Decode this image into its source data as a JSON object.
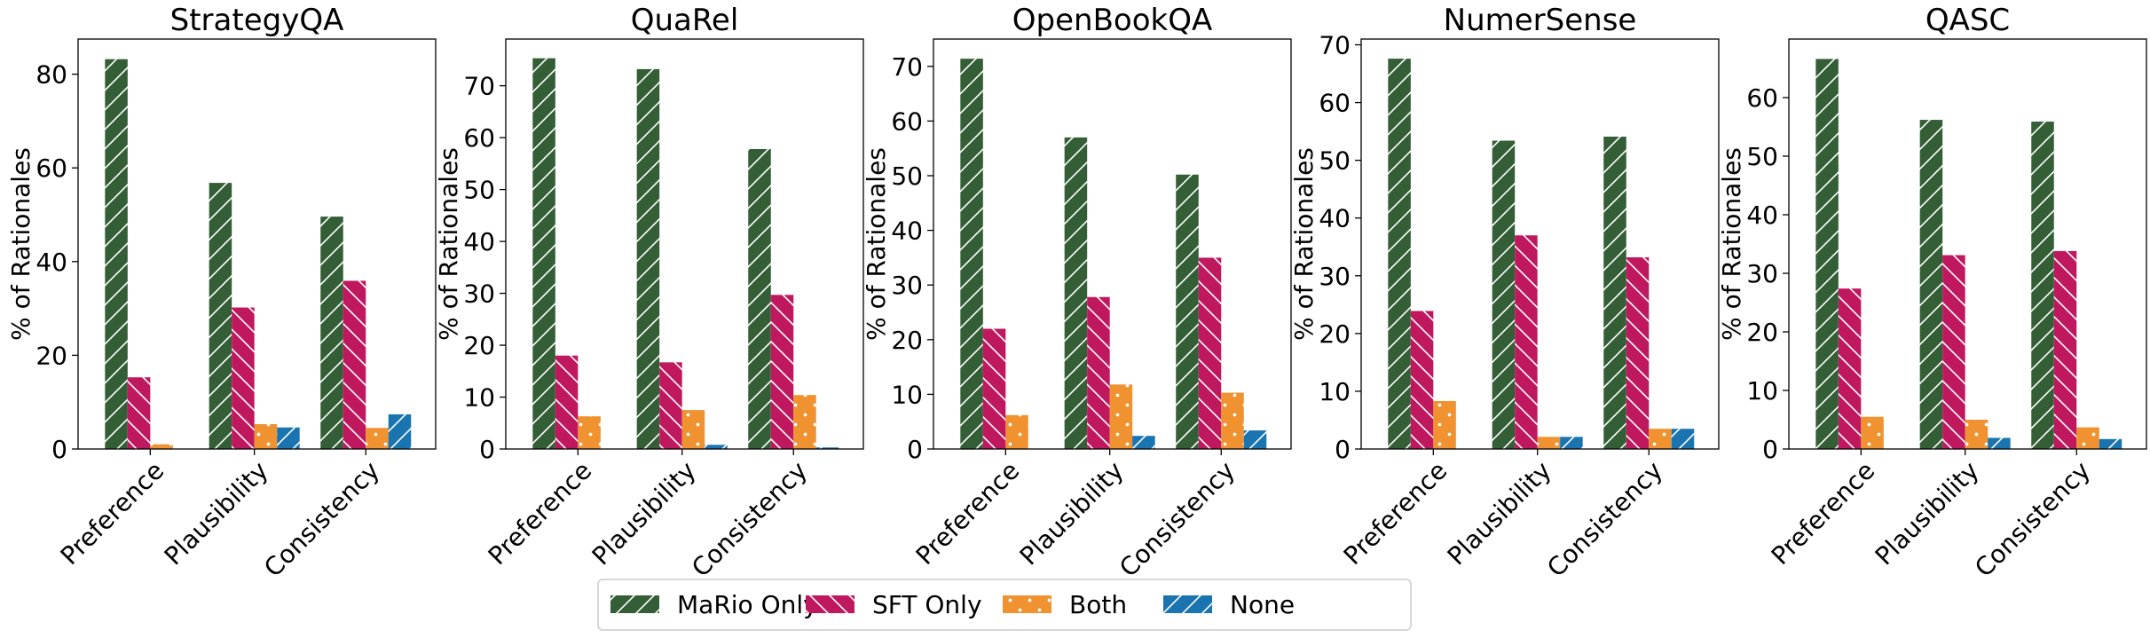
{
  "series_names": [
    "MaRio Only",
    "SFT Only",
    "Both",
    "None"
  ],
  "series_colors": [
    "#335e36",
    "#c0185f",
    "#f0922f",
    "#1a74b0"
  ],
  "series_hatches": [
    "slash",
    "backslash",
    "dots",
    "slash"
  ],
  "legend": {
    "placement": "bottom-center"
  },
  "chart_data": [
    {
      "type": "bar",
      "title": "StrategyQA",
      "categories": [
        "Preference",
        "Plausibility",
        "Consistency"
      ],
      "ylabel": "% of Rationales",
      "ylim": [
        0,
        87.5
      ],
      "yticks": [
        0,
        20,
        40,
        60,
        80
      ],
      "series": [
        {
          "name": "MaRio Only",
          "values": [
            83.2,
            56.8,
            49.6
          ]
        },
        {
          "name": "SFT Only",
          "values": [
            15.3,
            30.2,
            35.9
          ]
        },
        {
          "name": "Both",
          "values": [
            1.0,
            5.3,
            4.5
          ]
        },
        {
          "name": "None",
          "values": [
            0.0,
            4.6,
            7.4
          ]
        }
      ]
    },
    {
      "type": "bar",
      "title": "QuaRel",
      "categories": [
        "Preference",
        "Plausibility",
        "Consistency"
      ],
      "ylabel": "% of Rationales",
      "ylim": [
        0,
        79
      ],
      "yticks": [
        0,
        10,
        20,
        30,
        40,
        50,
        60,
        70
      ],
      "series": [
        {
          "name": "MaRio Only",
          "values": [
            75.3,
            73.2,
            57.8
          ]
        },
        {
          "name": "SFT Only",
          "values": [
            18.0,
            16.7,
            29.7
          ]
        },
        {
          "name": "Both",
          "values": [
            6.3,
            7.5,
            10.4
          ]
        },
        {
          "name": "None",
          "values": [
            0.0,
            0.8,
            0.3
          ]
        }
      ]
    },
    {
      "type": "bar",
      "title": "OpenBookQA",
      "categories": [
        "Preference",
        "Plausibility",
        "Consistency"
      ],
      "ylabel": "% of Rationales",
      "ylim": [
        0,
        75
      ],
      "yticks": [
        0,
        10,
        20,
        30,
        40,
        50,
        60,
        70
      ],
      "series": [
        {
          "name": "MaRio Only",
          "values": [
            71.4,
            57.0,
            50.2
          ]
        },
        {
          "name": "SFT Only",
          "values": [
            22.0,
            27.8,
            35.0
          ]
        },
        {
          "name": "Both",
          "values": [
            6.2,
            11.8,
            10.3
          ]
        },
        {
          "name": "None",
          "values": [
            0.0,
            2.4,
            3.4
          ]
        }
      ]
    },
    {
      "type": "bar",
      "title": "NumerSense",
      "categories": [
        "Preference",
        "Plausibility",
        "Consistency"
      ],
      "ylabel": "% of Rationales",
      "ylim": [
        0,
        71
      ],
      "yticks": [
        0,
        10,
        20,
        30,
        40,
        50,
        60,
        70
      ],
      "series": [
        {
          "name": "MaRio Only",
          "values": [
            67.6,
            53.4,
            54.1
          ]
        },
        {
          "name": "SFT Only",
          "values": [
            23.9,
            37.0,
            33.2
          ]
        },
        {
          "name": "Both",
          "values": [
            8.3,
            2.1,
            3.5
          ]
        },
        {
          "name": "None",
          "values": [
            0.0,
            2.1,
            3.5
          ]
        }
      ]
    },
    {
      "type": "bar",
      "title": "QASC",
      "categories": [
        "Preference",
        "Plausibility",
        "Consistency"
      ],
      "ylabel": "% of Rationales",
      "ylim": [
        0,
        70
      ],
      "yticks": [
        0,
        10,
        20,
        30,
        40,
        50,
        60
      ],
      "series": [
        {
          "name": "MaRio Only",
          "values": [
            66.6,
            56.2,
            55.9
          ]
        },
        {
          "name": "SFT Only",
          "values": [
            27.4,
            33.1,
            33.8
          ]
        },
        {
          "name": "Both",
          "values": [
            5.5,
            5.0,
            3.7
          ]
        },
        {
          "name": "None",
          "values": [
            0.0,
            1.9,
            1.7
          ]
        }
      ]
    }
  ]
}
